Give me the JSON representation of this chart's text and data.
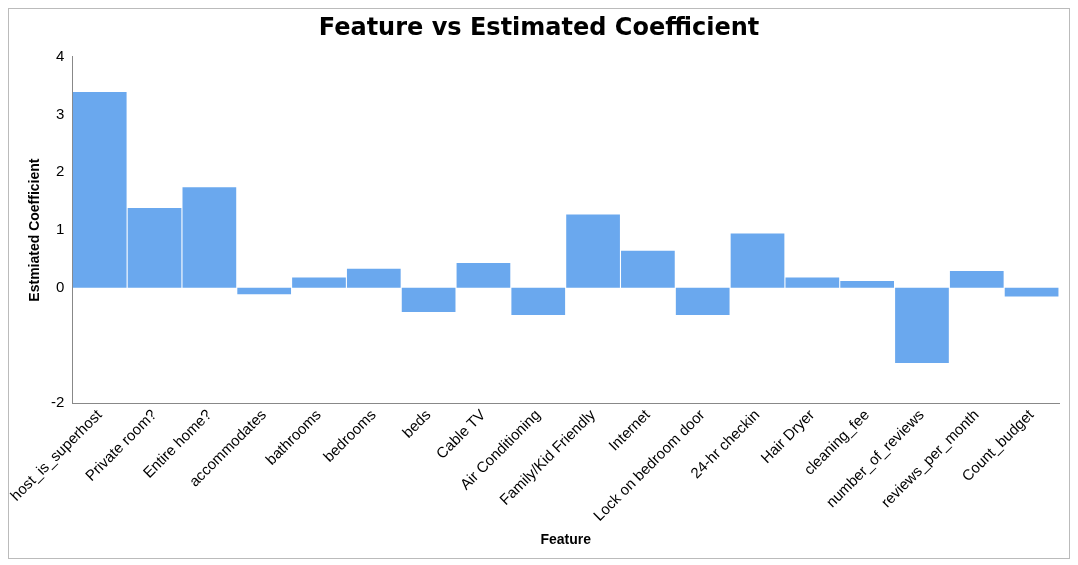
{
  "chart_data": {
    "type": "bar",
    "title": "Feature vs Estimated Coefficient",
    "xlabel": "Feature",
    "ylabel": "Estmiated Coefficient",
    "categories": [
      "host_is_superhost",
      "Private room?",
      "Entire home?",
      "accommodates",
      "bathrooms",
      "bedrooms",
      "beds",
      "Cable TV",
      "Air Conditioning",
      "Family/Kid Friendly",
      "Internet",
      "Lock on bedroom door",
      "24-hr checkin",
      "Hair Dryer",
      "cleaning_fee",
      "number_of_reviews",
      "reviews_per_month",
      "Count_budget"
    ],
    "values": [
      3.39,
      1.38,
      1.74,
      -0.11,
      0.18,
      0.33,
      -0.42,
      0.43,
      -0.47,
      1.27,
      0.64,
      -0.47,
      0.94,
      0.18,
      0.12,
      -1.3,
      0.29,
      -0.15
    ],
    "color": "#6aa8ee",
    "ylim": [
      -2,
      4
    ],
    "yticks": [
      -2,
      0,
      1,
      2,
      3,
      4
    ],
    "grid": false
  }
}
